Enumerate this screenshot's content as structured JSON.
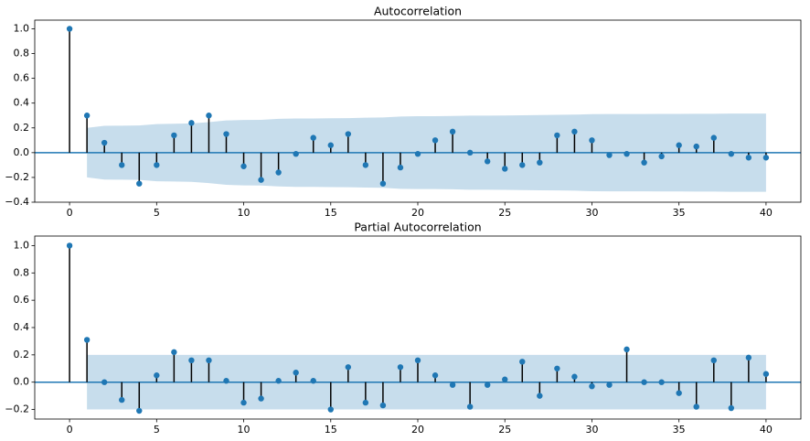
{
  "chart_data": [
    {
      "type": "stem",
      "title": "Autocorrelation",
      "x": [
        0,
        1,
        2,
        3,
        4,
        5,
        6,
        7,
        8,
        9,
        10,
        11,
        12,
        13,
        14,
        15,
        16,
        17,
        18,
        19,
        20,
        21,
        22,
        23,
        24,
        25,
        26,
        27,
        28,
        29,
        30,
        31,
        32,
        33,
        34,
        35,
        36,
        37,
        38,
        39,
        40
      ],
      "values": [
        1.0,
        0.3,
        0.08,
        -0.1,
        -0.25,
        -0.1,
        0.14,
        0.24,
        0.3,
        0.15,
        -0.11,
        -0.22,
        -0.16,
        -0.01,
        0.12,
        0.06,
        0.15,
        -0.1,
        -0.25,
        -0.12,
        -0.01,
        0.1,
        0.17,
        0.0,
        -0.07,
        -0.13,
        -0.1,
        -0.08,
        0.14,
        0.17,
        0.1,
        -0.02,
        -0.01,
        -0.08,
        -0.03,
        0.06,
        0.05,
        0.12,
        -0.01,
        -0.04,
        -0.04
      ],
      "band_upper": [
        null,
        0.2,
        0.217,
        0.218,
        0.22,
        0.231,
        0.233,
        0.236,
        0.246,
        0.26,
        0.264,
        0.265,
        0.273,
        0.276,
        0.276,
        0.278,
        0.279,
        0.282,
        0.284,
        0.292,
        0.294,
        0.294,
        0.296,
        0.299,
        0.299,
        0.3,
        0.302,
        0.304,
        0.305,
        0.307,
        0.311,
        0.312,
        0.312,
        0.312,
        0.313,
        0.313,
        0.314,
        0.314,
        0.316,
        0.316,
        0.316
      ],
      "band_lower": [
        null,
        -0.2,
        -0.217,
        -0.218,
        -0.22,
        -0.231,
        -0.233,
        -0.236,
        -0.246,
        -0.26,
        -0.264,
        -0.265,
        -0.273,
        -0.276,
        -0.276,
        -0.278,
        -0.279,
        -0.282,
        -0.284,
        -0.292,
        -0.294,
        -0.294,
        -0.296,
        -0.299,
        -0.299,
        -0.3,
        -0.302,
        -0.304,
        -0.305,
        -0.307,
        -0.311,
        -0.312,
        -0.312,
        -0.312,
        -0.313,
        -0.313,
        -0.314,
        -0.314,
        -0.316,
        -0.316,
        -0.316
      ],
      "color": "#1f77b4",
      "stem_color": "#000000",
      "band_color": "#1f77b4",
      "xlim": [
        -2,
        42
      ],
      "xticks": [
        0,
        5,
        10,
        15,
        20,
        25,
        30,
        35,
        40
      ],
      "ylim": [
        -0.4,
        1.07
      ],
      "yticks": [
        {
          "value": -0.4,
          "label": "−0.4"
        },
        {
          "value": -0.2,
          "label": "−0.2"
        },
        {
          "value": 0,
          "label": "0.0"
        },
        0.2,
        0.4,
        0.6,
        0.8,
        {
          "value": 1,
          "label": "1.0"
        }
      ]
    },
    {
      "type": "stem",
      "title": "Partial Autocorrelation",
      "x": [
        0,
        1,
        2,
        3,
        4,
        5,
        6,
        7,
        8,
        9,
        10,
        11,
        12,
        13,
        14,
        15,
        16,
        17,
        18,
        19,
        20,
        21,
        22,
        23,
        24,
        25,
        26,
        27,
        28,
        29,
        30,
        31,
        32,
        33,
        34,
        35,
        36,
        37,
        38,
        39,
        40
      ],
      "values": [
        1.0,
        0.31,
        0.0,
        -0.13,
        -0.21,
        0.05,
        0.22,
        0.16,
        0.16,
        0.01,
        -0.15,
        -0.12,
        0.01,
        0.07,
        0.01,
        -0.2,
        0.11,
        -0.15,
        -0.17,
        0.11,
        0.16,
        0.05,
        -0.02,
        -0.18,
        -0.02,
        0.02,
        0.15,
        -0.1,
        0.1,
        0.04,
        -0.03,
        -0.02,
        0.24,
        0.0,
        0.0,
        -0.08,
        -0.18,
        0.16,
        -0.19,
        0.18,
        0.06
      ],
      "band_upper": [
        null,
        0.2,
        0.2,
        0.2,
        0.2,
        0.2,
        0.2,
        0.2,
        0.2,
        0.2,
        0.2,
        0.2,
        0.2,
        0.2,
        0.2,
        0.2,
        0.2,
        0.2,
        0.2,
        0.2,
        0.2,
        0.2,
        0.2,
        0.2,
        0.2,
        0.2,
        0.2,
        0.2,
        0.2,
        0.2,
        0.2,
        0.2,
        0.2,
        0.2,
        0.2,
        0.2,
        0.2,
        0.2,
        0.2,
        0.2,
        0.2
      ],
      "band_lower": [
        null,
        -0.2,
        -0.2,
        -0.2,
        -0.2,
        -0.2,
        -0.2,
        -0.2,
        -0.2,
        -0.2,
        -0.2,
        -0.2,
        -0.2,
        -0.2,
        -0.2,
        -0.2,
        -0.2,
        -0.2,
        -0.2,
        -0.2,
        -0.2,
        -0.2,
        -0.2,
        -0.2,
        -0.2,
        -0.2,
        -0.2,
        -0.2,
        -0.2,
        -0.2,
        -0.2,
        -0.2,
        -0.2,
        -0.2,
        -0.2,
        -0.2,
        -0.2,
        -0.2,
        -0.2,
        -0.2,
        -0.2
      ],
      "color": "#1f77b4",
      "stem_color": "#000000",
      "band_color": "#1f77b4",
      "xlim": [
        -2,
        42
      ],
      "xticks": [
        0,
        5,
        10,
        15,
        20,
        25,
        30,
        35,
        40
      ],
      "ylim": [
        -0.27,
        1.07
      ],
      "yticks": [
        {
          "value": -0.2,
          "label": "−0.2"
        },
        {
          "value": 0,
          "label": "0.0"
        },
        0.2,
        0.4,
        0.6,
        0.8,
        {
          "value": 1,
          "label": "1.0"
        }
      ]
    }
  ]
}
